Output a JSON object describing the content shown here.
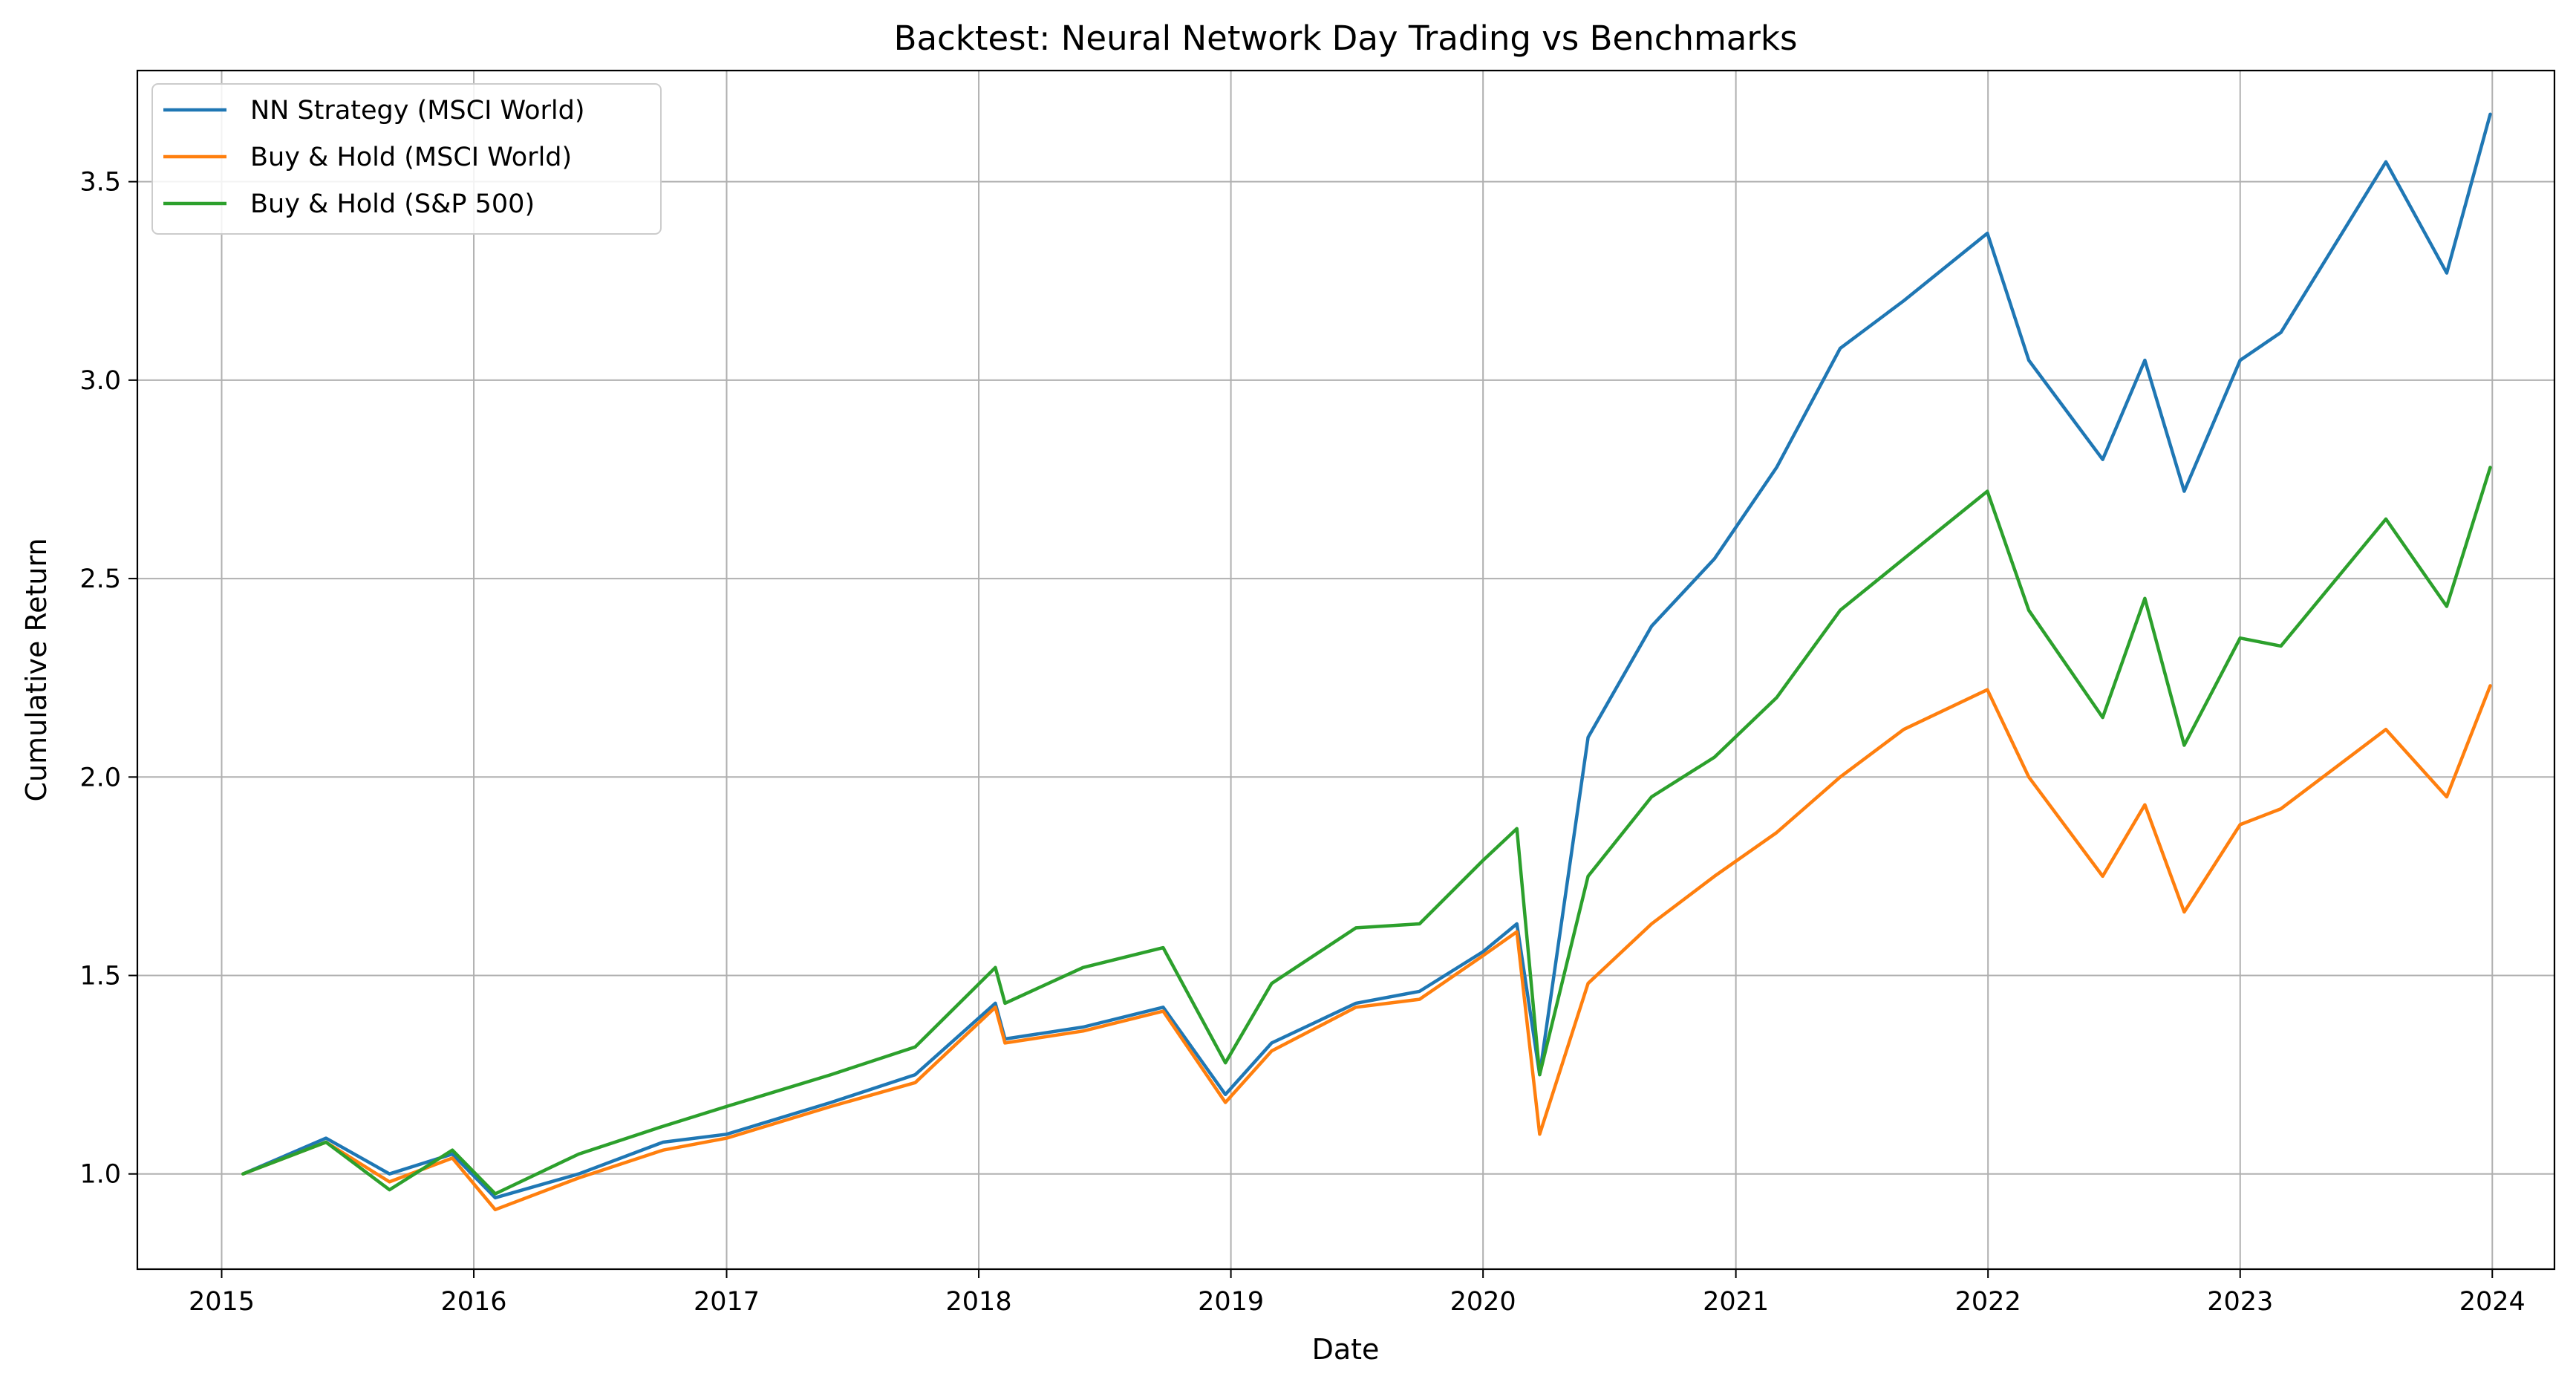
{
  "chart_data": {
    "type": "line",
    "title": "Backtest: Neural Network Day Trading vs Benchmarks",
    "xlabel": "Date",
    "ylabel": "Cumulative Return",
    "x_ticks": [
      "2015",
      "2016",
      "2017",
      "2018",
      "2019",
      "2020",
      "2021",
      "2022",
      "2023",
      "2024"
    ],
    "y_ticks": [
      "1.0",
      "1.5",
      "2.0",
      "2.5",
      "3.0",
      "3.5"
    ],
    "xlim": [
      "2014-09-01",
      "2024-03-31"
    ],
    "ylim": [
      0.76,
      3.78
    ],
    "grid": true,
    "legend_position": "upper-left",
    "x": [
      "2015-02-01",
      "2015-06-01",
      "2015-09-01",
      "2015-12-01",
      "2016-02-01",
      "2016-06-01",
      "2016-10-01",
      "2017-01-01",
      "2017-06-01",
      "2017-10-01",
      "2018-01-25",
      "2018-02-08",
      "2018-06-01",
      "2018-09-25",
      "2018-12-24",
      "2019-03-01",
      "2019-07-01",
      "2019-10-01",
      "2020-01-01",
      "2020-02-19",
      "2020-03-23",
      "2020-06-01",
      "2020-09-01",
      "2020-12-01",
      "2021-03-01",
      "2021-06-01",
      "2021-09-01",
      "2021-12-31",
      "2022-03-01",
      "2022-06-16",
      "2022-08-16",
      "2022-10-12",
      "2023-01-01",
      "2023-03-01",
      "2023-07-31",
      "2023-10-27",
      "2023-12-29"
    ],
    "series": [
      {
        "name": "NN Strategy (MSCI World)",
        "color": "#1f77b4",
        "values": [
          1.0,
          1.09,
          1.0,
          1.05,
          0.94,
          1.0,
          1.08,
          1.1,
          1.18,
          1.25,
          1.43,
          1.34,
          1.37,
          1.42,
          1.2,
          1.33,
          1.43,
          1.46,
          1.56,
          1.63,
          1.25,
          2.1,
          2.38,
          2.55,
          2.78,
          3.08,
          3.2,
          3.37,
          3.05,
          2.8,
          3.05,
          2.72,
          3.05,
          3.12,
          3.55,
          3.27,
          3.67
        ]
      },
      {
        "name": "Buy & Hold (MSCI World)",
        "color": "#ff7f0e",
        "values": [
          1.0,
          1.08,
          0.98,
          1.04,
          0.91,
          0.99,
          1.06,
          1.09,
          1.17,
          1.23,
          1.42,
          1.33,
          1.36,
          1.41,
          1.18,
          1.31,
          1.42,
          1.44,
          1.55,
          1.61,
          1.1,
          1.48,
          1.63,
          1.75,
          1.86,
          2.0,
          2.12,
          2.22,
          2.0,
          1.75,
          1.93,
          1.66,
          1.88,
          1.92,
          2.12,
          1.95,
          2.23
        ]
      },
      {
        "name": "Buy & Hold (S&P 500)",
        "color": "#2ca02c",
        "values": [
          1.0,
          1.08,
          0.96,
          1.06,
          0.95,
          1.05,
          1.12,
          1.17,
          1.25,
          1.32,
          1.52,
          1.43,
          1.52,
          1.57,
          1.28,
          1.48,
          1.62,
          1.63,
          1.79,
          1.87,
          1.25,
          1.75,
          1.95,
          2.05,
          2.2,
          2.42,
          2.55,
          2.72,
          2.42,
          2.15,
          2.45,
          2.08,
          2.35,
          2.33,
          2.65,
          2.43,
          2.78
        ]
      }
    ]
  }
}
